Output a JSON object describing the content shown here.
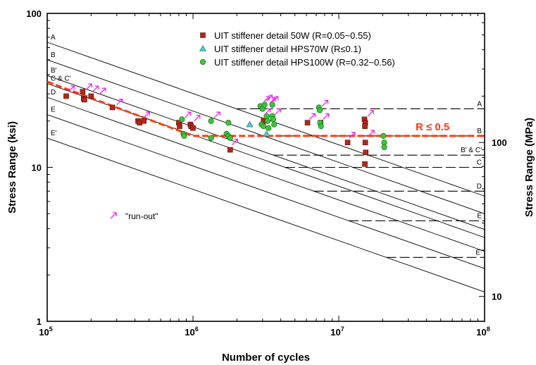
{
  "chart_data": {
    "type": "scatter",
    "title": "",
    "xlabel": "Number of cycles",
    "ylabel": "Stress Range (ksi)",
    "y2label": "Stress Range (MPa)",
    "x_scale": "log",
    "y_scale": "log",
    "xlim": [
      100000,
      100000000
    ],
    "ylim": [
      1,
      100
    ],
    "y2lim_mpa": [
      6.895,
      689.5
    ],
    "x_ticks": [
      {
        "value": 100000,
        "base": "10",
        "exp": "5"
      },
      {
        "value": 1000000,
        "base": "10",
        "exp": "6"
      },
      {
        "value": 10000000,
        "base": "10",
        "exp": "7"
      },
      {
        "value": 100000000,
        "base": "10",
        "exp": "8"
      }
    ],
    "y_ticks": [
      {
        "value": 1,
        "label": "1"
      },
      {
        "value": 10,
        "label": "10"
      },
      {
        "value": 100,
        "label": "100"
      }
    ],
    "y2_ticks": [
      {
        "value": 10,
        "label": "10"
      },
      {
        "value": 100,
        "label": "100"
      }
    ],
    "grid": false,
    "legend_position": "top-right",
    "detail_categories": [
      {
        "name": "A",
        "value_at_1e5": 65.0,
        "cafl": 24.0,
        "cafl_label": "A"
      },
      {
        "name": "B",
        "value_at_1e5": 50.0,
        "cafl": 16.0,
        "cafl_label": "B"
      },
      {
        "name": "B'",
        "value_at_1e5": 39.5,
        "cafl": 12.0,
        "cafl_label": "B' & C'"
      },
      {
        "name": "C & C'",
        "value_at_1e5": 35.0,
        "cafl": 10.0,
        "cafl_label": "C"
      },
      {
        "name": "D",
        "value_at_1e5": 28.5,
        "cafl": 7.0,
        "cafl_label": "D"
      },
      {
        "name": "E",
        "value_at_1e5": 22.0,
        "cafl": 4.5,
        "cafl_label": "E"
      },
      {
        "name": "E'",
        "value_at_1e5": 15.5,
        "cafl": 2.6,
        "cafl_label": "E'"
      }
    ],
    "fit_line": {
      "label": "R ≤ 0.5",
      "color": "#ff3b10",
      "points": [
        [
          100000,
          36
        ],
        [
          1000000,
          16
        ],
        [
          100000000,
          16
        ]
      ]
    },
    "series": [
      {
        "name": "UIT stiffener detail 50W (R=0.05~0.55)",
        "marker": "square",
        "color": "#b0281c",
        "points": [
          [
            135000,
            29
          ],
          [
            175000,
            31
          ],
          [
            178000,
            28
          ],
          [
            180000,
            27.5
          ],
          [
            200000,
            29
          ],
          [
            280000,
            24.5
          ],
          [
            420000,
            20
          ],
          [
            430000,
            19.5
          ],
          [
            460000,
            20
          ],
          [
            800000,
            19.5
          ],
          [
            810000,
            18.5
          ],
          [
            960000,
            19
          ],
          [
            970000,
            18.5
          ],
          [
            1000000,
            18
          ],
          [
            1800000,
            13
          ],
          [
            3050000,
            20
          ],
          [
            6100000,
            19.5
          ],
          [
            7500000,
            19.5
          ],
          [
            11500000,
            14.5
          ],
          [
            15000000,
            20.5
          ],
          [
            15200000,
            19.5
          ],
          [
            15100000,
            18.5
          ],
          [
            15200000,
            14.5
          ],
          [
            15300000,
            12.5
          ],
          [
            15100000,
            10.5
          ]
        ]
      },
      {
        "name": "UIT stiffener detail HPS70W (R≤0.1)",
        "marker": "triangle",
        "color": "#55c6cc",
        "points": [
          [
            2450000,
            19
          ],
          [
            3200000,
            16.5
          ]
        ]
      },
      {
        "name": "UIT stiffener detail HPS100W (R=0.32~0.56)",
        "marker": "circle",
        "color": "#3ec23e",
        "points": [
          [
            840000,
            20.5
          ],
          [
            860000,
            16.5
          ],
          [
            870000,
            16
          ],
          [
            1330000,
            20
          ],
          [
            1330000,
            15.5
          ],
          [
            1750000,
            19.5
          ],
          [
            1700000,
            16.5
          ],
          [
            1750000,
            16
          ],
          [
            1800000,
            15.5
          ],
          [
            2900000,
            25
          ],
          [
            3000000,
            24
          ],
          [
            3100000,
            25.5
          ],
          [
            3200000,
            21.5
          ],
          [
            3250000,
            20
          ],
          [
            2950000,
            19
          ],
          [
            3050000,
            18.5
          ],
          [
            3300000,
            18
          ],
          [
            3500000,
            25.5
          ],
          [
            3500000,
            21.5
          ],
          [
            3550000,
            20.5
          ],
          [
            3600000,
            19
          ],
          [
            7300000,
            24.5
          ],
          [
            7400000,
            23.5
          ],
          [
            7450000,
            19.5
          ],
          [
            7550000,
            18.5
          ],
          [
            20200000,
            16
          ],
          [
            20500000,
            14.5
          ],
          [
            20500000,
            13.5
          ]
        ]
      }
    ],
    "runout_markers": [
      [
        140000,
        31
      ],
      [
        185000,
        32
      ],
      [
        205000,
        31
      ],
      [
        230000,
        30
      ],
      [
        300000,
        25.5
      ],
      [
        460000,
        21
      ],
      [
        880000,
        21
      ],
      [
        1020000,
        20
      ],
      [
        1400000,
        21
      ],
      [
        1850000,
        14
      ],
      [
        3050000,
        26.5
      ],
      [
        3200000,
        27
      ],
      [
        3350000,
        26
      ],
      [
        3500000,
        26.5
      ],
      [
        3650000,
        22
      ],
      [
        3100000,
        22
      ],
      [
        6300000,
        20.5
      ],
      [
        7700000,
        25
      ],
      [
        7800000,
        20.5
      ],
      [
        11800000,
        15.5
      ],
      [
        15800000,
        21.5
      ],
      [
        16000000,
        16
      ]
    ],
    "runout_legend_label": "\"run-out\"",
    "runout_color": "#ee22ee"
  }
}
